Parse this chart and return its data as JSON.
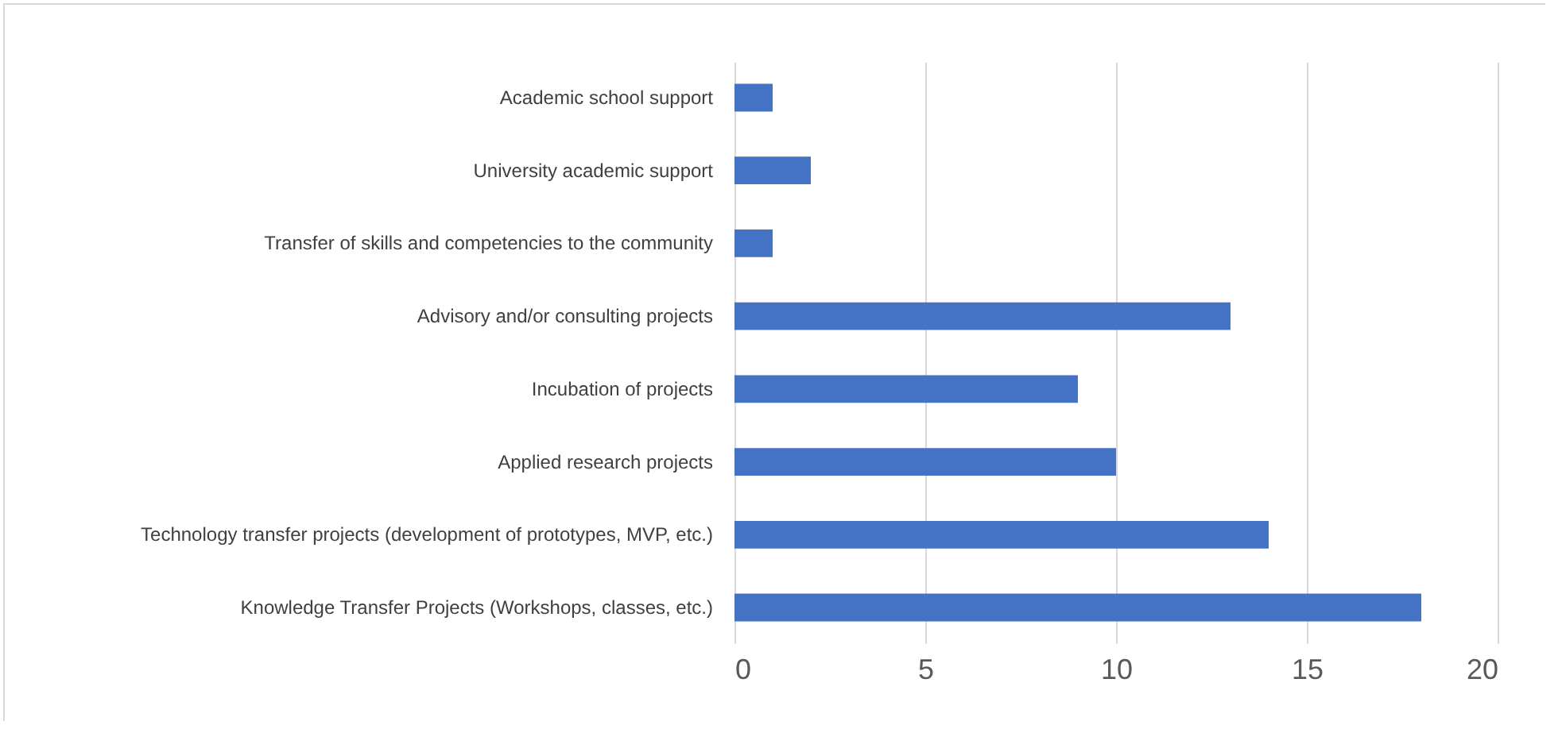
{
  "chart_data": {
    "type": "bar",
    "orientation": "horizontal",
    "categories": [
      "Academic school support",
      "University academic support",
      "Transfer of skills and competencies to the community",
      "Advisory and/or consulting projects",
      "Incubation of projects",
      "Applied research projects",
      "Technology transfer projects (development of prototypes, MVP, etc.)",
      "Knowledge Transfer Projects (Workshops, classes, etc.)"
    ],
    "values": [
      1,
      2,
      1,
      13,
      9,
      10,
      14,
      18
    ],
    "color": "#4472c4",
    "xlim": [
      0,
      20
    ],
    "xticks": [
      0,
      5,
      10,
      15,
      20
    ],
    "grid": "x"
  }
}
